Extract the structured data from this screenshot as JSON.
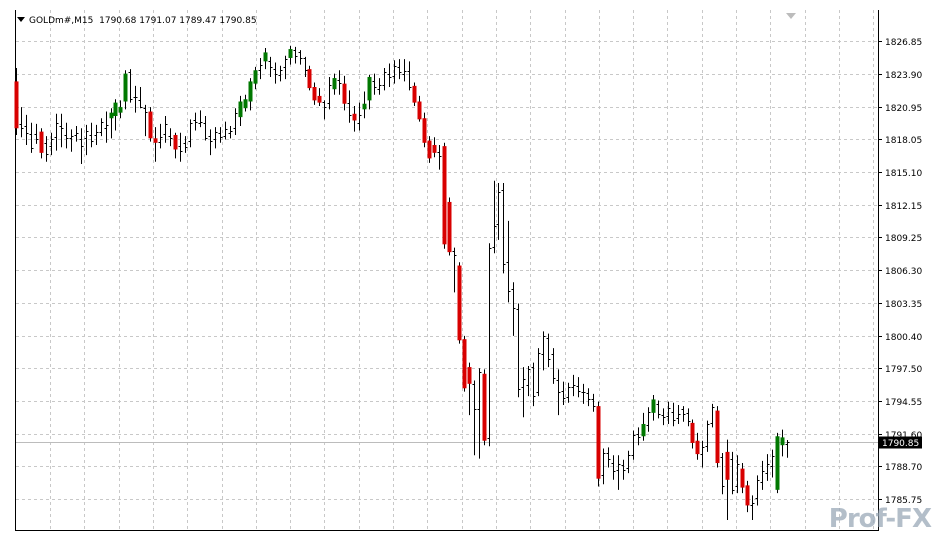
{
  "header": {
    "symbol": "GOLDm#,M15",
    "ohlc": "1790.68 1791.07 1789.47 1790.85"
  },
  "watermark": "Prof-FX",
  "colors": {
    "background": "#ffffff",
    "grid": "#c8c8c8",
    "bull": "#007800",
    "bear": "#d80000",
    "neutral": "#000000",
    "price_line": "#bcbcbc",
    "price_tag_bg": "#000000",
    "price_tag_fg": "#ffffff"
  },
  "chart_data": {
    "type": "candlestick",
    "symbol": "GOLDm#",
    "timeframe": "M15",
    "ylim": [
      1783.0,
      1829.6
    ],
    "y_ticks": [
      "1826.85",
      "1823.90",
      "1820.95",
      "1818.05",
      "1815.10",
      "1812.15",
      "1809.25",
      "1806.30",
      "1803.35",
      "1800.40",
      "1797.50",
      "1794.55",
      "1791.60",
      "1788.70",
      "1785.75"
    ],
    "current_price": "1790.85",
    "candles": [
      {
        "o": 1823.2,
        "h": 1824.4,
        "l": 1818.4,
        "c": 1819.0,
        "d": "bear"
      },
      {
        "o": 1819.4,
        "h": 1820.9,
        "l": 1818.2,
        "c": 1819.0,
        "d": "flat"
      },
      {
        "o": 1819.2,
        "h": 1820.2,
        "l": 1817.5,
        "c": 1818.6,
        "d": "flat"
      },
      {
        "o": 1818.5,
        "h": 1819.5,
        "l": 1816.8,
        "c": 1817.2,
        "d": "flat"
      },
      {
        "o": 1818.5,
        "h": 1819.4,
        "l": 1817.6,
        "c": 1818.0,
        "d": "flat"
      },
      {
        "o": 1818.7,
        "h": 1819.0,
        "l": 1816.3,
        "c": 1816.8,
        "d": "bear"
      },
      {
        "o": 1817.7,
        "h": 1818.3,
        "l": 1816.0,
        "c": 1816.7,
        "d": "flat"
      },
      {
        "o": 1817.4,
        "h": 1818.6,
        "l": 1816.6,
        "c": 1818.0,
        "d": "flat"
      },
      {
        "o": 1818.2,
        "h": 1820.3,
        "l": 1817.0,
        "c": 1819.5,
        "d": "flat"
      },
      {
        "o": 1819.2,
        "h": 1820.3,
        "l": 1817.3,
        "c": 1819.0,
        "d": "flat"
      },
      {
        "o": 1818.4,
        "h": 1819.5,
        "l": 1817.2,
        "c": 1818.1,
        "d": "flat"
      },
      {
        "o": 1818.1,
        "h": 1818.9,
        "l": 1816.9,
        "c": 1818.3,
        "d": "flat"
      },
      {
        "o": 1818.4,
        "h": 1819.2,
        "l": 1817.8,
        "c": 1818.6,
        "d": "flat"
      },
      {
        "o": 1818.0,
        "h": 1819.0,
        "l": 1815.8,
        "c": 1817.4,
        "d": "flat"
      },
      {
        "o": 1818.1,
        "h": 1819.3,
        "l": 1816.6,
        "c": 1818.8,
        "d": "flat"
      },
      {
        "o": 1818.4,
        "h": 1819.5,
        "l": 1817.3,
        "c": 1817.9,
        "d": "flat"
      },
      {
        "o": 1818.4,
        "h": 1819.3,
        "l": 1817.5,
        "c": 1818.7,
        "d": "flat"
      },
      {
        "o": 1818.7,
        "h": 1819.9,
        "l": 1818.3,
        "c": 1819.6,
        "d": "flat"
      },
      {
        "o": 1819.0,
        "h": 1820.5,
        "l": 1817.7,
        "c": 1819.3,
        "d": "flat"
      },
      {
        "o": 1819.9,
        "h": 1820.8,
        "l": 1818.1,
        "c": 1820.4,
        "d": "bull"
      },
      {
        "o": 1820.1,
        "h": 1821.6,
        "l": 1818.8,
        "c": 1821.3,
        "d": "bull"
      },
      {
        "o": 1820.4,
        "h": 1821.5,
        "l": 1819.9,
        "c": 1820.9,
        "d": "bull"
      },
      {
        "o": 1821.4,
        "h": 1824.2,
        "l": 1820.7,
        "c": 1823.9,
        "d": "bull"
      },
      {
        "o": 1824.0,
        "h": 1824.3,
        "l": 1821.3,
        "c": 1821.6,
        "d": "flat"
      },
      {
        "o": 1821.8,
        "h": 1822.8,
        "l": 1820.4,
        "c": 1821.8,
        "d": "flat"
      },
      {
        "o": 1821.5,
        "h": 1822.7,
        "l": 1820.8,
        "c": 1820.9,
        "d": "flat"
      },
      {
        "o": 1820.8,
        "h": 1821.1,
        "l": 1818.3,
        "c": 1820.5,
        "d": "flat"
      },
      {
        "o": 1820.5,
        "h": 1820.9,
        "l": 1817.8,
        "c": 1818.1,
        "d": "bear"
      },
      {
        "o": 1818.1,
        "h": 1819.1,
        "l": 1816.0,
        "c": 1817.7,
        "d": "bear"
      },
      {
        "o": 1817.8,
        "h": 1819.4,
        "l": 1817.2,
        "c": 1818.2,
        "d": "flat"
      },
      {
        "o": 1818.5,
        "h": 1820.1,
        "l": 1817.7,
        "c": 1819.4,
        "d": "flat"
      },
      {
        "o": 1818.3,
        "h": 1819.0,
        "l": 1817.4,
        "c": 1818.1,
        "d": "flat"
      },
      {
        "o": 1818.4,
        "h": 1818.6,
        "l": 1816.3,
        "c": 1817.1,
        "d": "bear"
      },
      {
        "o": 1817.4,
        "h": 1818.6,
        "l": 1816.0,
        "c": 1817.0,
        "d": "flat"
      },
      {
        "o": 1817.7,
        "h": 1818.3,
        "l": 1816.8,
        "c": 1817.3,
        "d": "flat"
      },
      {
        "o": 1817.9,
        "h": 1819.8,
        "l": 1817.3,
        "c": 1819.5,
        "d": "flat"
      },
      {
        "o": 1819.7,
        "h": 1820.4,
        "l": 1818.8,
        "c": 1819.6,
        "d": "flat"
      },
      {
        "o": 1819.5,
        "h": 1820.6,
        "l": 1819.1,
        "c": 1819.6,
        "d": "flat"
      },
      {
        "o": 1819.5,
        "h": 1820.1,
        "l": 1817.9,
        "c": 1818.1,
        "d": "flat"
      },
      {
        "o": 1818.3,
        "h": 1818.9,
        "l": 1816.6,
        "c": 1817.9,
        "d": "flat"
      },
      {
        "o": 1818.0,
        "h": 1819.1,
        "l": 1817.2,
        "c": 1818.7,
        "d": "flat"
      },
      {
        "o": 1818.6,
        "h": 1819.1,
        "l": 1817.7,
        "c": 1818.2,
        "d": "flat"
      },
      {
        "o": 1818.3,
        "h": 1819.6,
        "l": 1818.0,
        "c": 1818.9,
        "d": "flat"
      },
      {
        "o": 1818.6,
        "h": 1819.2,
        "l": 1818.1,
        "c": 1818.8,
        "d": "flat"
      },
      {
        "o": 1819.0,
        "h": 1820.8,
        "l": 1818.4,
        "c": 1820.4,
        "d": "flat"
      },
      {
        "o": 1820.0,
        "h": 1821.9,
        "l": 1819.2,
        "c": 1821.4,
        "d": "bull"
      },
      {
        "o": 1820.8,
        "h": 1822.0,
        "l": 1820.5,
        "c": 1821.6,
        "d": "bull"
      },
      {
        "o": 1821.4,
        "h": 1823.5,
        "l": 1820.6,
        "c": 1823.2,
        "d": "bull"
      },
      {
        "o": 1823.0,
        "h": 1824.5,
        "l": 1822.5,
        "c": 1824.2,
        "d": "bull"
      },
      {
        "o": 1824.2,
        "h": 1825.3,
        "l": 1823.4,
        "c": 1824.7,
        "d": "flat"
      },
      {
        "o": 1825.0,
        "h": 1826.2,
        "l": 1824.3,
        "c": 1825.8,
        "d": "bull"
      },
      {
        "o": 1825.0,
        "h": 1825.4,
        "l": 1823.6,
        "c": 1824.5,
        "d": "flat"
      },
      {
        "o": 1824.3,
        "h": 1824.9,
        "l": 1823.0,
        "c": 1823.9,
        "d": "flat"
      },
      {
        "o": 1823.8,
        "h": 1824.6,
        "l": 1823.2,
        "c": 1824.2,
        "d": "flat"
      },
      {
        "o": 1824.5,
        "h": 1825.5,
        "l": 1823.4,
        "c": 1825.2,
        "d": "flat"
      },
      {
        "o": 1825.3,
        "h": 1826.4,
        "l": 1824.7,
        "c": 1826.1,
        "d": "bull"
      },
      {
        "o": 1826.0,
        "h": 1826.3,
        "l": 1824.8,
        "c": 1825.5,
        "d": "flat"
      },
      {
        "o": 1825.8,
        "h": 1826.0,
        "l": 1824.7,
        "c": 1825.3,
        "d": "flat"
      },
      {
        "o": 1825.3,
        "h": 1825.4,
        "l": 1823.6,
        "c": 1824.2,
        "d": "flat"
      },
      {
        "o": 1824.3,
        "h": 1824.6,
        "l": 1822.4,
        "c": 1822.6,
        "d": "bear"
      },
      {
        "o": 1822.7,
        "h": 1823.1,
        "l": 1821.1,
        "c": 1821.5,
        "d": "bear"
      },
      {
        "o": 1821.9,
        "h": 1822.6,
        "l": 1821.0,
        "c": 1821.3,
        "d": "bear"
      },
      {
        "o": 1821.4,
        "h": 1821.5,
        "l": 1819.8,
        "c": 1820.9,
        "d": "flat"
      },
      {
        "o": 1821.3,
        "h": 1823.6,
        "l": 1820.7,
        "c": 1822.9,
        "d": "flat"
      },
      {
        "o": 1822.5,
        "h": 1823.9,
        "l": 1822.0,
        "c": 1823.5,
        "d": "bull"
      },
      {
        "o": 1823.3,
        "h": 1824.2,
        "l": 1822.0,
        "c": 1823.1,
        "d": "flat"
      },
      {
        "o": 1823.0,
        "h": 1823.7,
        "l": 1820.6,
        "c": 1821.2,
        "d": "bear"
      },
      {
        "o": 1821.3,
        "h": 1822.4,
        "l": 1819.5,
        "c": 1820.2,
        "d": "flat"
      },
      {
        "o": 1820.3,
        "h": 1821.0,
        "l": 1818.7,
        "c": 1819.7,
        "d": "bear"
      },
      {
        "o": 1819.5,
        "h": 1821.3,
        "l": 1818.8,
        "c": 1820.2,
        "d": "flat"
      },
      {
        "o": 1820.7,
        "h": 1822.3,
        "l": 1819.9,
        "c": 1821.2,
        "d": "bull"
      },
      {
        "o": 1821.5,
        "h": 1823.8,
        "l": 1820.7,
        "c": 1823.6,
        "d": "bull"
      },
      {
        "o": 1823.2,
        "h": 1823.9,
        "l": 1822.0,
        "c": 1822.7,
        "d": "flat"
      },
      {
        "o": 1822.5,
        "h": 1823.5,
        "l": 1822.0,
        "c": 1822.9,
        "d": "flat"
      },
      {
        "o": 1822.9,
        "h": 1824.4,
        "l": 1822.4,
        "c": 1824.0,
        "d": "flat"
      },
      {
        "o": 1823.9,
        "h": 1824.8,
        "l": 1822.7,
        "c": 1823.6,
        "d": "flat"
      },
      {
        "o": 1823.7,
        "h": 1825.1,
        "l": 1823.0,
        "c": 1824.6,
        "d": "flat"
      },
      {
        "o": 1824.5,
        "h": 1825.2,
        "l": 1823.4,
        "c": 1824.0,
        "d": "flat"
      },
      {
        "o": 1823.9,
        "h": 1825.2,
        "l": 1823.2,
        "c": 1824.1,
        "d": "flat"
      },
      {
        "o": 1824.1,
        "h": 1825.0,
        "l": 1822.4,
        "c": 1822.7,
        "d": "flat"
      },
      {
        "o": 1822.8,
        "h": 1823.1,
        "l": 1821.0,
        "c": 1821.3,
        "d": "bear"
      },
      {
        "o": 1821.4,
        "h": 1821.9,
        "l": 1819.6,
        "c": 1819.8,
        "d": "bear"
      },
      {
        "o": 1819.9,
        "h": 1820.4,
        "l": 1817.3,
        "c": 1817.7,
        "d": "bear"
      },
      {
        "o": 1817.9,
        "h": 1818.3,
        "l": 1815.9,
        "c": 1816.3,
        "d": "bear"
      },
      {
        "o": 1817.5,
        "h": 1818.2,
        "l": 1816.4,
        "c": 1816.8,
        "d": "bear"
      },
      {
        "o": 1816.9,
        "h": 1817.5,
        "l": 1815.3,
        "c": 1816.5,
        "d": "flat"
      },
      {
        "o": 1817.4,
        "h": 1817.7,
        "l": 1808.2,
        "c": 1808.6,
        "d": "bear"
      },
      {
        "o": 1812.4,
        "h": 1812.8,
        "l": 1807.6,
        "c": 1807.9,
        "d": "bear"
      },
      {
        "o": 1808.0,
        "h": 1808.3,
        "l": 1804.3,
        "c": 1807.6,
        "d": "flat"
      },
      {
        "o": 1806.7,
        "h": 1807.0,
        "l": 1799.7,
        "c": 1800.0,
        "d": "bear"
      },
      {
        "o": 1800.1,
        "h": 1800.4,
        "l": 1795.4,
        "c": 1795.7,
        "d": "bear"
      },
      {
        "o": 1797.6,
        "h": 1798.0,
        "l": 1793.3,
        "c": 1796.1,
        "d": "bear"
      },
      {
        "o": 1796.1,
        "h": 1796.4,
        "l": 1789.7,
        "c": 1793.8,
        "d": "flat"
      },
      {
        "o": 1793.8,
        "h": 1797.5,
        "l": 1789.4,
        "c": 1797.2,
        "d": "flat"
      },
      {
        "o": 1797.0,
        "h": 1797.4,
        "l": 1790.6,
        "c": 1791.0,
        "d": "bear"
      },
      {
        "o": 1791.2,
        "h": 1808.7,
        "l": 1790.5,
        "c": 1808.3,
        "d": "flat"
      },
      {
        "o": 1808.4,
        "h": 1814.3,
        "l": 1807.8,
        "c": 1810.2,
        "d": "flat"
      },
      {
        "o": 1810.4,
        "h": 1814.1,
        "l": 1809.0,
        "c": 1813.3,
        "d": "flat"
      },
      {
        "o": 1813.5,
        "h": 1814.1,
        "l": 1806.0,
        "c": 1806.8,
        "d": "flat"
      },
      {
        "o": 1807.0,
        "h": 1810.7,
        "l": 1803.4,
        "c": 1804.4,
        "d": "flat"
      },
      {
        "o": 1804.6,
        "h": 1805.2,
        "l": 1800.4,
        "c": 1802.9,
        "d": "flat"
      },
      {
        "o": 1802.8,
        "h": 1803.3,
        "l": 1794.9,
        "c": 1795.6,
        "d": "flat"
      },
      {
        "o": 1795.8,
        "h": 1797.6,
        "l": 1793.1,
        "c": 1796.5,
        "d": "flat"
      },
      {
        "o": 1796.0,
        "h": 1797.7,
        "l": 1795.0,
        "c": 1797.4,
        "d": "flat"
      },
      {
        "o": 1797.6,
        "h": 1798.0,
        "l": 1794.1,
        "c": 1795.0,
        "d": "flat"
      },
      {
        "o": 1795.4,
        "h": 1799.3,
        "l": 1795.0,
        "c": 1798.9,
        "d": "flat"
      },
      {
        "o": 1798.8,
        "h": 1800.8,
        "l": 1797.3,
        "c": 1800.4,
        "d": "flat"
      },
      {
        "o": 1800.2,
        "h": 1800.6,
        "l": 1797.6,
        "c": 1798.3,
        "d": "flat"
      },
      {
        "o": 1798.8,
        "h": 1799.3,
        "l": 1796.1,
        "c": 1796.6,
        "d": "flat"
      },
      {
        "o": 1796.4,
        "h": 1797.4,
        "l": 1793.3,
        "c": 1795.4,
        "d": "flat"
      },
      {
        "o": 1795.5,
        "h": 1796.3,
        "l": 1794.2,
        "c": 1794.8,
        "d": "flat"
      },
      {
        "o": 1794.9,
        "h": 1796.2,
        "l": 1794.4,
        "c": 1795.8,
        "d": "flat"
      },
      {
        "o": 1795.8,
        "h": 1796.9,
        "l": 1795.0,
        "c": 1796.0,
        "d": "flat"
      },
      {
        "o": 1795.9,
        "h": 1796.7,
        "l": 1794.9,
        "c": 1795.5,
        "d": "flat"
      },
      {
        "o": 1795.4,
        "h": 1796.1,
        "l": 1794.3,
        "c": 1795.4,
        "d": "flat"
      },
      {
        "o": 1795.3,
        "h": 1795.7,
        "l": 1794.1,
        "c": 1794.7,
        "d": "flat"
      },
      {
        "o": 1794.7,
        "h": 1795.2,
        "l": 1793.6,
        "c": 1794.1,
        "d": "flat"
      },
      {
        "o": 1794.1,
        "h": 1794.5,
        "l": 1786.9,
        "c": 1787.6,
        "d": "bear"
      },
      {
        "o": 1787.9,
        "h": 1790.3,
        "l": 1787.1,
        "c": 1789.9,
        "d": "flat"
      },
      {
        "o": 1789.9,
        "h": 1790.4,
        "l": 1788.6,
        "c": 1789.4,
        "d": "flat"
      },
      {
        "o": 1789.0,
        "h": 1789.7,
        "l": 1787.5,
        "c": 1788.3,
        "d": "flat"
      },
      {
        "o": 1788.4,
        "h": 1789.7,
        "l": 1786.6,
        "c": 1788.9,
        "d": "flat"
      },
      {
        "o": 1788.8,
        "h": 1789.3,
        "l": 1787.5,
        "c": 1788.4,
        "d": "flat"
      },
      {
        "o": 1788.6,
        "h": 1790.1,
        "l": 1788.1,
        "c": 1789.7,
        "d": "flat"
      },
      {
        "o": 1789.7,
        "h": 1791.9,
        "l": 1789.3,
        "c": 1791.5,
        "d": "flat"
      },
      {
        "o": 1791.6,
        "h": 1792.2,
        "l": 1790.6,
        "c": 1791.3,
        "d": "flat"
      },
      {
        "o": 1791.4,
        "h": 1793.5,
        "l": 1791.0,
        "c": 1792.5,
        "d": "bull"
      },
      {
        "o": 1792.4,
        "h": 1794.0,
        "l": 1791.8,
        "c": 1793.6,
        "d": "flat"
      },
      {
        "o": 1793.5,
        "h": 1795.1,
        "l": 1792.8,
        "c": 1794.7,
        "d": "bull"
      },
      {
        "o": 1794.3,
        "h": 1794.6,
        "l": 1793.0,
        "c": 1793.4,
        "d": "flat"
      },
      {
        "o": 1793.3,
        "h": 1793.9,
        "l": 1792.4,
        "c": 1793.1,
        "d": "flat"
      },
      {
        "o": 1793.2,
        "h": 1794.5,
        "l": 1792.5,
        "c": 1793.9,
        "d": "flat"
      },
      {
        "o": 1793.6,
        "h": 1794.4,
        "l": 1792.3,
        "c": 1792.9,
        "d": "flat"
      },
      {
        "o": 1793.0,
        "h": 1794.2,
        "l": 1792.5,
        "c": 1793.4,
        "d": "flat"
      },
      {
        "o": 1793.8,
        "h": 1794.1,
        "l": 1792.7,
        "c": 1793.4,
        "d": "flat"
      },
      {
        "o": 1793.5,
        "h": 1793.9,
        "l": 1792.3,
        "c": 1792.8,
        "d": "flat"
      },
      {
        "o": 1792.6,
        "h": 1792.9,
        "l": 1790.3,
        "c": 1790.8,
        "d": "bear"
      },
      {
        "o": 1791.0,
        "h": 1791.7,
        "l": 1789.3,
        "c": 1789.8,
        "d": "bear"
      },
      {
        "o": 1789.8,
        "h": 1791.0,
        "l": 1788.6,
        "c": 1790.4,
        "d": "flat"
      },
      {
        "o": 1790.5,
        "h": 1792.8,
        "l": 1790.0,
        "c": 1792.5,
        "d": "flat"
      },
      {
        "o": 1792.6,
        "h": 1794.3,
        "l": 1792.2,
        "c": 1794.0,
        "d": "flat"
      },
      {
        "o": 1793.7,
        "h": 1794.1,
        "l": 1788.6,
        "c": 1789.0,
        "d": "bear"
      },
      {
        "o": 1789.5,
        "h": 1789.9,
        "l": 1786.2,
        "c": 1786.9,
        "d": "flat"
      },
      {
        "o": 1787.5,
        "h": 1791.1,
        "l": 1783.9,
        "c": 1790.0,
        "d": "bear"
      },
      {
        "o": 1789.4,
        "h": 1790.0,
        "l": 1786.2,
        "c": 1786.6,
        "d": "flat"
      },
      {
        "o": 1786.9,
        "h": 1789.7,
        "l": 1786.3,
        "c": 1788.9,
        "d": "flat"
      },
      {
        "o": 1788.5,
        "h": 1789.0,
        "l": 1786.3,
        "c": 1786.8,
        "d": "bear"
      },
      {
        "o": 1787.0,
        "h": 1787.4,
        "l": 1784.6,
        "c": 1785.2,
        "d": "bear"
      },
      {
        "o": 1785.2,
        "h": 1786.1,
        "l": 1783.9,
        "c": 1785.4,
        "d": "flat"
      },
      {
        "o": 1785.9,
        "h": 1787.9,
        "l": 1785.2,
        "c": 1787.5,
        "d": "flat"
      },
      {
        "o": 1787.3,
        "h": 1789.2,
        "l": 1786.6,
        "c": 1788.3,
        "d": "flat"
      },
      {
        "o": 1788.1,
        "h": 1789.8,
        "l": 1787.4,
        "c": 1788.9,
        "d": "flat"
      },
      {
        "o": 1788.7,
        "h": 1790.2,
        "l": 1787.7,
        "c": 1789.6,
        "d": "flat"
      },
      {
        "o": 1786.6,
        "h": 1791.7,
        "l": 1786.3,
        "c": 1791.4,
        "d": "bull"
      },
      {
        "o": 1791.3,
        "h": 1792.0,
        "l": 1789.6,
        "c": 1790.6,
        "d": "bull"
      },
      {
        "o": 1790.68,
        "h": 1791.07,
        "l": 1789.47,
        "c": 1790.85,
        "d": "flat"
      }
    ]
  }
}
